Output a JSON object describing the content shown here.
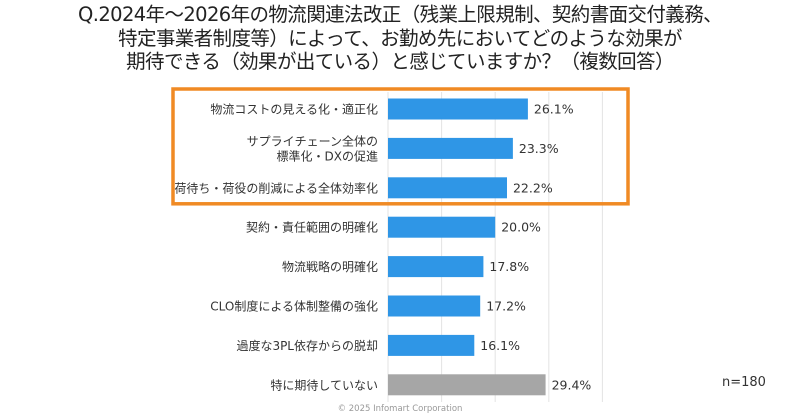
{
  "chart_data": {
    "type": "bar",
    "orientation": "horizontal",
    "title": [
      "Q.2024年～2026年の物流関連法改正（残業上限規制、契約書面交付義務、",
      "特定事業者制度等）によって、お勤め先においてどのような効果が",
      "期待できる（効果が出ている）と感じていますか？（複数回答）"
    ],
    "categories": [
      [
        "物流コストの見える化・適正化"
      ],
      [
        "サプライチェーン全体の",
        "標準化・DXの促進"
      ],
      [
        "荷待ち・荷役の削減による全体効率化"
      ],
      [
        "契約・責任範囲の明確化"
      ],
      [
        "物流戦略の明確化"
      ],
      [
        "CLO制度による体制整備の強化"
      ],
      [
        "過度な3PL依存からの脱却"
      ],
      [
        "特に期待していない"
      ]
    ],
    "values": [
      26.1,
      23.3,
      22.2,
      20.0,
      17.8,
      17.2,
      16.1,
      29.4
    ],
    "value_labels": [
      "26.1%",
      "23.3%",
      "22.2%",
      "20.0%",
      "17.8%",
      "17.2%",
      "16.1%",
      "29.4%"
    ],
    "bar_colors": [
      "#2f96e6",
      "#2f96e6",
      "#2f96e6",
      "#2f96e6",
      "#2f96e6",
      "#2f96e6",
      "#2f96e6",
      "#a6a6a6"
    ],
    "highlight_color": "#f08a24",
    "highlighted_categories": [
      0,
      1,
      2
    ],
    "xlim": [
      0,
      40
    ],
    "grid": true,
    "xlabel": "",
    "ylabel": ""
  },
  "sample_size": "n=180",
  "copyright": "© 2025 Infomart Corporation"
}
